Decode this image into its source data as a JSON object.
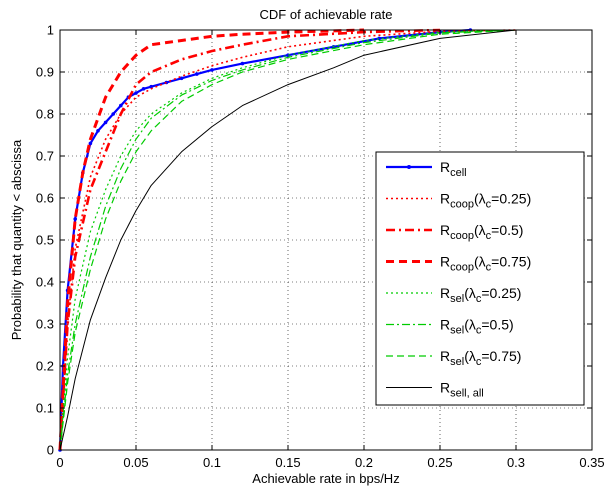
{
  "chart_data": {
    "type": "line",
    "title": "CDF of achievable rate",
    "xlabel": "Achievable rate in bps/Hz",
    "ylabel": "Probability that quantity < abscissa",
    "xlim": [
      0,
      0.35
    ],
    "ylim": [
      0,
      1
    ],
    "xticks": [
      "0",
      "0.05",
      "0.1",
      "0.15",
      "0.2",
      "0.25",
      "0.3",
      "0.35"
    ],
    "yticks": [
      "0",
      "0.1",
      "0.2",
      "0.3",
      "0.4",
      "0.5",
      "0.6",
      "0.7",
      "0.8",
      "0.9",
      "1"
    ],
    "grid": true,
    "legend_position": "right",
    "series": [
      {
        "name": "R_cell",
        "label_main": "R",
        "label_sub": "cell",
        "label_rest": "",
        "color": "#0000ff",
        "dash": "",
        "width": 2.2,
        "marker": true,
        "x": [
          0,
          0.002,
          0.005,
          0.01,
          0.015,
          0.02,
          0.025,
          0.03,
          0.035,
          0.04,
          0.045,
          0.05,
          0.055,
          0.06,
          0.07,
          0.08,
          0.09,
          0.1,
          0.12,
          0.15,
          0.18,
          0.21,
          0.25,
          0.27
        ],
        "y": [
          0,
          0.2,
          0.38,
          0.55,
          0.66,
          0.73,
          0.76,
          0.78,
          0.8,
          0.82,
          0.84,
          0.85,
          0.86,
          0.865,
          0.875,
          0.885,
          0.895,
          0.905,
          0.92,
          0.94,
          0.96,
          0.98,
          0.995,
          1
        ]
      },
      {
        "name": "R_coop(λc=0.25)",
        "label_main": "R",
        "label_sub": "coop",
        "label_rest": "(λ_c=0.25)",
        "color": "#ff0000",
        "dash": "2,3",
        "width": 1.6,
        "marker": false,
        "x": [
          0,
          0.005,
          0.01,
          0.02,
          0.03,
          0.04,
          0.05,
          0.06,
          0.08,
          0.1,
          0.12,
          0.15,
          0.2,
          0.25,
          0.3
        ],
        "y": [
          0,
          0.3,
          0.48,
          0.65,
          0.74,
          0.8,
          0.84,
          0.86,
          0.89,
          0.915,
          0.935,
          0.96,
          0.985,
          0.997,
          1
        ]
      },
      {
        "name": "R_coop(λc=0.5)",
        "label_main": "R",
        "label_sub": "coop",
        "label_rest": "(λ_c=0.5)",
        "color": "#ff0000",
        "dash": "9,4,2,4",
        "width": 2.6,
        "marker": false,
        "x": [
          0,
          0.005,
          0.01,
          0.02,
          0.03,
          0.04,
          0.05,
          0.06,
          0.08,
          0.1,
          0.12,
          0.15,
          0.2,
          0.25
        ],
        "y": [
          0,
          0.3,
          0.46,
          0.62,
          0.71,
          0.8,
          0.87,
          0.9,
          0.93,
          0.95,
          0.965,
          0.985,
          0.995,
          1
        ]
      },
      {
        "name": "R_coop(λc=0.75)",
        "label_main": "R",
        "label_sub": "coop",
        "label_rest": "(λ_c=0.75)",
        "color": "#ff0000",
        "dash": "8,5",
        "width": 3,
        "marker": false,
        "x": [
          0,
          0.005,
          0.01,
          0.015,
          0.02,
          0.03,
          0.04,
          0.05,
          0.06,
          0.08,
          0.1,
          0.12,
          0.15,
          0.2
        ],
        "y": [
          0,
          0.35,
          0.55,
          0.66,
          0.74,
          0.84,
          0.9,
          0.94,
          0.965,
          0.975,
          0.985,
          0.99,
          0.995,
          1
        ]
      },
      {
        "name": "R_sel(λc=0.25)",
        "label_main": "R",
        "label_sub": "sel",
        "label_rest": "(λ_c=0.25)",
        "color": "#00cc00",
        "dash": "2,3",
        "width": 1.2,
        "marker": false,
        "x": [
          0,
          0.005,
          0.01,
          0.02,
          0.03,
          0.04,
          0.05,
          0.06,
          0.08,
          0.1,
          0.12,
          0.15,
          0.2,
          0.25,
          0.3
        ],
        "y": [
          0,
          0.22,
          0.36,
          0.52,
          0.62,
          0.7,
          0.76,
          0.8,
          0.85,
          0.885,
          0.91,
          0.94,
          0.975,
          0.995,
          1
        ]
      },
      {
        "name": "R_sel(λc=0.5)",
        "label_main": "R",
        "label_sub": "sel",
        "label_rest": "(λ_c=0.5)",
        "color": "#00cc00",
        "dash": "8,3,2,3",
        "width": 1.2,
        "marker": false,
        "x": [
          0,
          0.005,
          0.01,
          0.02,
          0.03,
          0.04,
          0.05,
          0.06,
          0.08,
          0.1,
          0.12,
          0.15,
          0.2,
          0.25,
          0.3
        ],
        "y": [
          0,
          0.18,
          0.3,
          0.46,
          0.58,
          0.67,
          0.74,
          0.79,
          0.845,
          0.88,
          0.905,
          0.935,
          0.97,
          0.993,
          1
        ]
      },
      {
        "name": "R_sel(λc=0.75)",
        "label_main": "R",
        "label_sub": "sel",
        "label_rest": "(λ_c=0.75)",
        "color": "#00cc00",
        "dash": "7,4",
        "width": 1.2,
        "marker": false,
        "x": [
          0,
          0.005,
          0.01,
          0.02,
          0.03,
          0.04,
          0.05,
          0.06,
          0.08,
          0.1,
          0.12,
          0.15,
          0.2,
          0.25,
          0.3
        ],
        "y": [
          0,
          0.16,
          0.28,
          0.43,
          0.55,
          0.64,
          0.71,
          0.76,
          0.83,
          0.87,
          0.9,
          0.93,
          0.965,
          0.99,
          1
        ]
      },
      {
        "name": "R_sell, all",
        "label_main": "R",
        "label_sub": "sell, all",
        "label_rest": "",
        "color": "#000000",
        "dash": "",
        "width": 1,
        "marker": false,
        "x": [
          0,
          0.005,
          0.01,
          0.02,
          0.03,
          0.04,
          0.05,
          0.06,
          0.08,
          0.1,
          0.12,
          0.15,
          0.18,
          0.2,
          0.25,
          0.3
        ],
        "y": [
          0,
          0.08,
          0.17,
          0.31,
          0.41,
          0.5,
          0.57,
          0.63,
          0.71,
          0.77,
          0.82,
          0.87,
          0.91,
          0.94,
          0.98,
          1
        ]
      }
    ]
  }
}
